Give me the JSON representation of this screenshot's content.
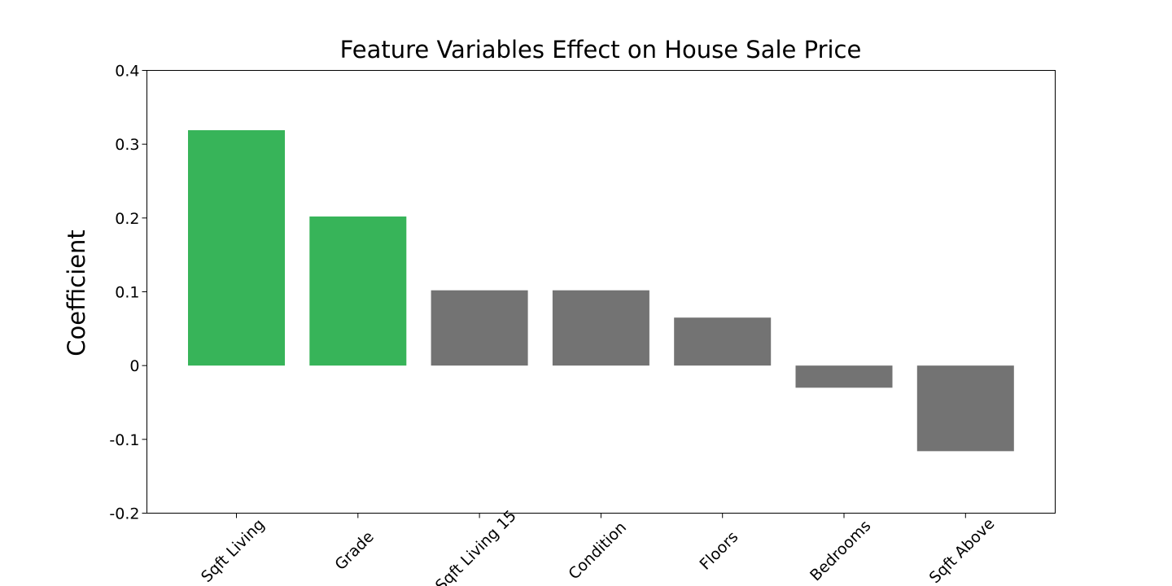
{
  "chart_data": {
    "type": "bar",
    "title": "Feature Variables Effect on House Sale Price",
    "xlabel": "",
    "ylabel": "Coefficient",
    "categories": [
      "Sqft Living",
      "Grade",
      "Sqft Living 15",
      "Condition",
      "Floors",
      "Bedrooms",
      "Sqft Above"
    ],
    "values": [
      0.319,
      0.202,
      0.102,
      0.102,
      0.065,
      -0.03,
      -0.116
    ],
    "bar_colors": [
      "#37b459",
      "#37b459",
      "#737373",
      "#737373",
      "#737373",
      "#737373",
      "#737373"
    ],
    "ylim": [
      -0.2,
      0.4
    ],
    "yticks": [
      -0.2,
      -0.1,
      0,
      0.1,
      0.2,
      0.3,
      0.4
    ],
    "ytick_labels": [
      "-0.2",
      "-0.1",
      "0",
      "0.1",
      "0.2",
      "0.3",
      "0.4"
    ],
    "grid": false,
    "legend": "none"
  }
}
